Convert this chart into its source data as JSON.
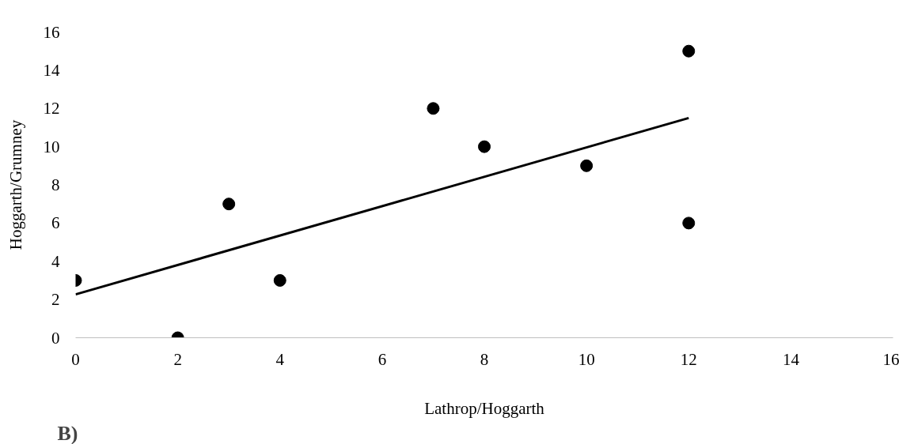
{
  "chart_data": {
    "type": "scatter",
    "xlabel": "Lathrop/Hoggarth",
    "ylabel": "Hoggarth/Grumney",
    "annotations": [
      "B)"
    ],
    "xlim": [
      0,
      16
    ],
    "ylim": [
      0,
      16
    ],
    "xticks": [
      0,
      2,
      4,
      6,
      8,
      10,
      12,
      14,
      16
    ],
    "yticks": [
      0,
      2,
      4,
      6,
      8,
      10,
      12,
      14,
      16
    ],
    "grid": false,
    "series": [
      {
        "color": "#000000",
        "marker": "circle",
        "x": [
          0,
          2,
          3,
          4,
          7,
          8,
          10,
          12,
          12
        ],
        "values": [
          3,
          0,
          7,
          3,
          12,
          10,
          9,
          15,
          6
        ]
      },
      {
        "type": "line",
        "color": "#000000",
        "x": [
          0,
          12
        ],
        "values": [
          2.27,
          11.5
        ]
      }
    ]
  }
}
